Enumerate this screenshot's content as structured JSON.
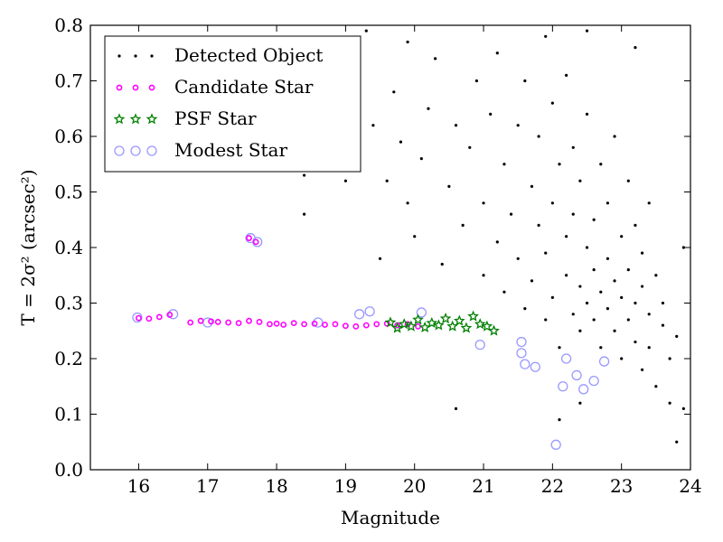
{
  "chart_data": {
    "type": "scatter",
    "xlabel": "Magnitude",
    "ylabel": "T = 2σ² (arcsec²)",
    "xlim": [
      15.3,
      24.0
    ],
    "ylim": [
      0.0,
      0.8
    ],
    "xticks": [
      16,
      17,
      18,
      19,
      20,
      21,
      22,
      23,
      24
    ],
    "yticks": [
      0.0,
      0.1,
      0.2,
      0.3,
      0.4,
      0.5,
      0.6,
      0.7,
      0.8
    ],
    "grid": false,
    "legend_position": "top-left",
    "colors": {
      "detected": "#000000",
      "candidate": "#ff00ff",
      "psf": "#008000",
      "modest": "#9999ff"
    },
    "series": [
      {
        "name": "Detected Object",
        "marker": "dot",
        "points": [
          [
            17.6,
            0.66
          ],
          [
            18.1,
            0.58
          ],
          [
            18.4,
            0.53
          ],
          [
            18.4,
            0.46
          ],
          [
            18.7,
            0.71
          ],
          [
            19.0,
            0.52
          ],
          [
            19.1,
            0.54
          ],
          [
            19.3,
            0.79
          ],
          [
            19.4,
            0.62
          ],
          [
            19.6,
            0.52
          ],
          [
            19.5,
            0.38
          ],
          [
            19.7,
            0.68
          ],
          [
            19.8,
            0.59
          ],
          [
            19.9,
            0.48
          ],
          [
            20.0,
            0.42
          ],
          [
            20.1,
            0.56
          ],
          [
            20.2,
            0.65
          ],
          [
            20.3,
            0.74
          ],
          [
            20.4,
            0.37
          ],
          [
            20.5,
            0.51
          ],
          [
            20.6,
            0.62
          ],
          [
            20.7,
            0.44
          ],
          [
            20.8,
            0.58
          ],
          [
            20.9,
            0.7
          ],
          [
            21.0,
            0.35
          ],
          [
            21.0,
            0.48
          ],
          [
            21.1,
            0.64
          ],
          [
            21.2,
            0.41
          ],
          [
            21.2,
            0.75
          ],
          [
            21.3,
            0.55
          ],
          [
            21.3,
            0.32
          ],
          [
            21.4,
            0.46
          ],
          [
            21.5,
            0.62
          ],
          [
            21.5,
            0.38
          ],
          [
            21.6,
            0.7
          ],
          [
            21.6,
            0.29
          ],
          [
            21.7,
            0.51
          ],
          [
            21.7,
            0.34
          ],
          [
            21.8,
            0.44
          ],
          [
            21.8,
            0.6
          ],
          [
            21.9,
            0.27
          ],
          [
            21.9,
            0.39
          ],
          [
            22.0,
            0.48
          ],
          [
            22.0,
            0.66
          ],
          [
            22.0,
            0.31
          ],
          [
            22.1,
            0.55
          ],
          [
            22.1,
            0.22
          ],
          [
            22.2,
            0.42
          ],
          [
            22.2,
            0.35
          ],
          [
            22.2,
            0.71
          ],
          [
            22.3,
            0.28
          ],
          [
            22.3,
            0.46
          ],
          [
            22.3,
            0.58
          ],
          [
            22.4,
            0.33
          ],
          [
            22.4,
            0.25
          ],
          [
            22.4,
            0.52
          ],
          [
            22.5,
            0.4
          ],
          [
            22.5,
            0.3
          ],
          [
            22.5,
            0.64
          ],
          [
            22.6,
            0.36
          ],
          [
            22.6,
            0.27
          ],
          [
            22.6,
            0.45
          ],
          [
            22.7,
            0.32
          ],
          [
            22.7,
            0.22
          ],
          [
            22.7,
            0.55
          ],
          [
            22.8,
            0.38
          ],
          [
            22.8,
            0.29
          ],
          [
            22.8,
            0.48
          ],
          [
            22.9,
            0.34
          ],
          [
            22.9,
            0.25
          ],
          [
            22.9,
            0.6
          ],
          [
            23.0,
            0.31
          ],
          [
            23.0,
            0.42
          ],
          [
            23.0,
            0.2
          ],
          [
            23.1,
            0.36
          ],
          [
            23.1,
            0.27
          ],
          [
            23.1,
            0.52
          ],
          [
            23.2,
            0.3
          ],
          [
            23.2,
            0.23
          ],
          [
            23.2,
            0.44
          ],
          [
            23.3,
            0.33
          ],
          [
            23.3,
            0.18
          ],
          [
            23.3,
            0.39
          ],
          [
            23.4,
            0.28
          ],
          [
            23.4,
            0.22
          ],
          [
            23.5,
            0.35
          ],
          [
            23.5,
            0.15
          ],
          [
            23.6,
            0.26
          ],
          [
            23.6,
            0.3
          ],
          [
            23.7,
            0.2
          ],
          [
            23.7,
            0.12
          ],
          [
            23.8,
            0.24
          ],
          [
            23.8,
            0.05
          ],
          [
            23.9,
            0.11
          ],
          [
            23.9,
            0.4
          ],
          [
            23.4,
            0.48
          ],
          [
            22.1,
            0.09
          ],
          [
            22.4,
            0.12
          ],
          [
            20.6,
            0.11
          ],
          [
            19.9,
            0.77
          ],
          [
            21.9,
            0.78
          ],
          [
            22.5,
            0.79
          ],
          [
            23.2,
            0.76
          ]
        ]
      },
      {
        "name": "Candidate Star",
        "marker": "circle",
        "points": [
          [
            16.0,
            0.273
          ],
          [
            16.15,
            0.272
          ],
          [
            16.3,
            0.275
          ],
          [
            16.45,
            0.279
          ],
          [
            16.75,
            0.265
          ],
          [
            16.9,
            0.268
          ],
          [
            17.05,
            0.267
          ],
          [
            17.15,
            0.266
          ],
          [
            17.3,
            0.265
          ],
          [
            17.45,
            0.264
          ],
          [
            17.6,
            0.268
          ],
          [
            17.75,
            0.266
          ],
          [
            17.9,
            0.262
          ],
          [
            18.0,
            0.263
          ],
          [
            18.1,
            0.261
          ],
          [
            18.25,
            0.264
          ],
          [
            18.4,
            0.262
          ],
          [
            18.55,
            0.263
          ],
          [
            18.7,
            0.261
          ],
          [
            18.85,
            0.262
          ],
          [
            19.0,
            0.259
          ],
          [
            19.15,
            0.258
          ],
          [
            19.3,
            0.26
          ],
          [
            19.45,
            0.262
          ],
          [
            19.6,
            0.263
          ],
          [
            19.75,
            0.26
          ],
          [
            19.9,
            0.262
          ],
          [
            20.05,
            0.258
          ],
          [
            17.6,
            0.417
          ],
          [
            17.7,
            0.41
          ]
        ]
      },
      {
        "name": "PSF Star",
        "marker": "star",
        "points": [
          [
            19.65,
            0.265
          ],
          [
            19.75,
            0.255
          ],
          [
            19.85,
            0.262
          ],
          [
            19.95,
            0.258
          ],
          [
            20.05,
            0.27
          ],
          [
            20.15,
            0.256
          ],
          [
            20.25,
            0.264
          ],
          [
            20.35,
            0.26
          ],
          [
            20.45,
            0.272
          ],
          [
            20.55,
            0.258
          ],
          [
            20.65,
            0.268
          ],
          [
            20.75,
            0.255
          ],
          [
            20.85,
            0.276
          ],
          [
            20.95,
            0.262
          ],
          [
            21.05,
            0.258
          ],
          [
            21.15,
            0.25
          ]
        ]
      },
      {
        "name": "Modest Star",
        "marker": "open-circle",
        "points": [
          [
            15.98,
            0.274
          ],
          [
            16.5,
            0.28
          ],
          [
            17.0,
            0.265
          ],
          [
            17.62,
            0.417
          ],
          [
            17.72,
            0.41
          ],
          [
            18.6,
            0.265
          ],
          [
            19.2,
            0.28
          ],
          [
            19.35,
            0.285
          ],
          [
            20.1,
            0.283
          ],
          [
            20.95,
            0.225
          ],
          [
            21.55,
            0.23
          ],
          [
            21.55,
            0.21
          ],
          [
            21.6,
            0.19
          ],
          [
            21.75,
            0.185
          ],
          [
            22.05,
            0.045
          ],
          [
            22.15,
            0.15
          ],
          [
            22.2,
            0.2
          ],
          [
            22.35,
            0.17
          ],
          [
            22.45,
            0.145
          ],
          [
            22.6,
            0.16
          ],
          [
            22.75,
            0.195
          ]
        ]
      }
    ]
  }
}
